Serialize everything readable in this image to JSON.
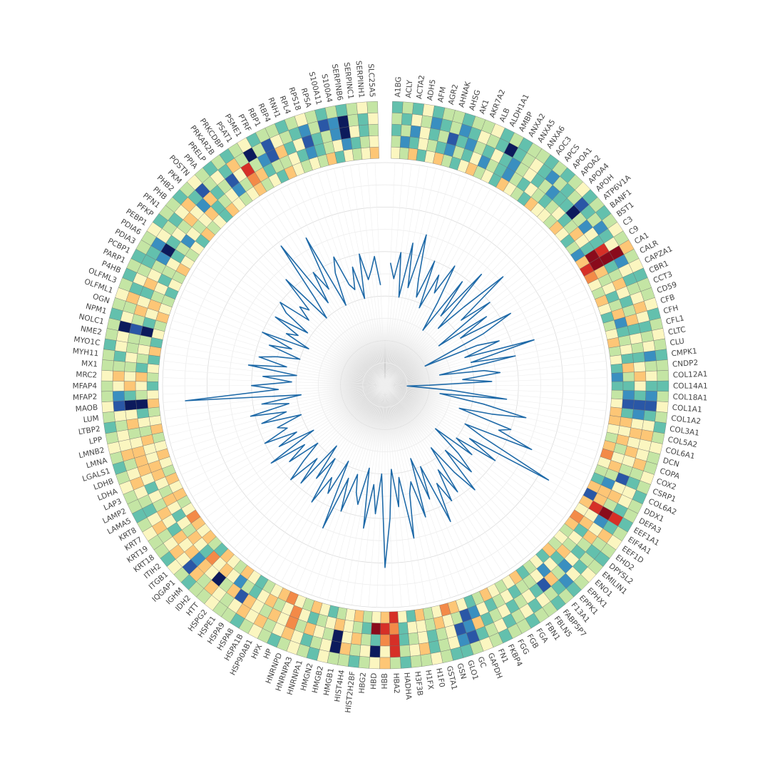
{
  "chart_data": {
    "type": "radial-heatmap",
    "categories": [
      "A1BG",
      "ACLY",
      "ACTA2",
      "ADH5",
      "AFM",
      "AGR2",
      "AHNAK",
      "AHSG",
      "AK1",
      "AKR7A2",
      "ALB",
      "ALDH1A1",
      "AMBP",
      "ANXA2",
      "ANXA5",
      "ANXA6",
      "AOC3",
      "APCS",
      "APOA1",
      "APOA2",
      "APOA4",
      "APOH",
      "ATP6V1A",
      "BANF1",
      "BST1",
      "C3",
      "C9",
      "CA1",
      "CALR",
      "CAPZA1",
      "CBR1",
      "CCT3",
      "CD59",
      "CFB",
      "CFH",
      "CFL1",
      "CLTC",
      "CLU",
      "CMPK1",
      "CNDP2",
      "COL12A1",
      "COL14A1",
      "COL18A1",
      "COL1A1",
      "COL1A2",
      "COL3A1",
      "COL5A2",
      "COL6A1",
      "DCN",
      "COPA",
      "COX2",
      "CSRP1",
      "COL6A2",
      "DDX1",
      "DEFA3",
      "EEF1A1",
      "EIF4A1",
      "EEF1D",
      "EHD2",
      "DPYSL2",
      "EMILIN1",
      "ENO1",
      "EPHX1",
      "EPPK1",
      "F13A1",
      "FABP5P7",
      "FBLN5",
      "FBN1",
      "FGA",
      "FGB",
      "FGG",
      "FKBP4",
      "FN1",
      "GAPDH",
      "GC",
      "GLO1",
      "GSN",
      "GSTA1",
      "H1F0",
      "H1FX",
      "H3F3B",
      "HADHA",
      "HBA2",
      "HBB",
      "HBD",
      "HBG2",
      "HIST2H2BF",
      "HIST4H4",
      "HMGB1",
      "HMGB2",
      "HMGN2",
      "HNRNPA1",
      "HNRNPA3",
      "HNRNPD",
      "HP",
      "HPX",
      "HSP90AB1",
      "HSPA1B",
      "HSPA8",
      "HSPA9",
      "HSPE1",
      "HSPG2",
      "HTT",
      "IDH2",
      "IGHM",
      "IQGAP1",
      "ITGB1",
      "ITIH2",
      "KRT18",
      "KRT19",
      "KRT7",
      "KRT8",
      "LAMA5",
      "LAMP2",
      "LAP3",
      "LDHA",
      "LDHB",
      "LGALS1",
      "LMNA",
      "LMNB2",
      "LPP",
      "LTBP2",
      "LUM",
      "MAOB",
      "MFAP2",
      "MFAP4",
      "MRC2",
      "MX1",
      "MYH11",
      "MYO1C",
      "NME2",
      "NOLC1",
      "NPM1",
      "OGN",
      "OLFML1",
      "OLFML3",
      "P4HB",
      "PARP1",
      "PCBP1",
      "PDIA3",
      "PDIA6",
      "PEBP1",
      "PFKP",
      "PFN1",
      "PHB",
      "PHB2",
      "PKM",
      "POSTN",
      "PPIA",
      "PRELP",
      "PRKAR2B",
      "PRKCDBP",
      "PSAT1",
      "PSME1",
      "PTRF",
      "RBP1",
      "RBP4",
      "RNH1",
      "RPL4",
      "RPS18",
      "RPSA",
      "S100A11",
      "S100A4",
      "SERPINB6",
      "SERPINC1",
      "SERPINH1",
      "SLC25A5"
    ],
    "values": [
      55,
      48,
      60,
      40,
      65,
      45,
      70,
      50,
      42,
      60,
      38,
      55,
      47,
      62,
      44,
      30,
      58,
      40,
      66,
      35,
      50,
      72,
      45,
      60,
      30,
      55,
      40,
      65,
      50,
      20,
      45,
      55,
      38,
      70,
      40,
      60,
      25,
      45,
      52,
      35,
      48,
      20,
      10,
      30,
      55,
      25,
      45,
      65,
      50,
      35,
      60,
      55,
      72,
      40,
      50,
      85,
      45,
      60,
      40,
      50,
      30,
      45,
      55,
      40,
      62,
      50,
      35,
      58,
      45,
      60,
      50,
      68,
      40,
      55,
      35,
      62,
      45,
      50,
      70,
      42,
      55,
      38,
      60,
      82,
      40,
      58,
      45,
      65,
      38,
      55,
      50,
      42,
      60,
      45,
      70,
      38,
      55,
      48,
      62,
      40,
      52,
      35,
      58,
      45,
      60,
      50,
      40,
      55,
      45,
      62,
      38,
      55,
      45,
      60,
      48,
      52,
      40,
      58,
      46,
      62,
      44,
      56,
      38,
      90,
      48,
      60,
      42,
      55,
      40,
      62,
      45,
      58,
      50,
      40,
      55,
      45,
      60,
      38,
      50,
      45,
      58,
      42,
      55,
      60,
      45,
      52,
      48,
      65,
      40,
      50,
      78,
      45,
      60,
      50,
      75,
      40,
      55,
      62,
      48,
      45,
      55,
      40,
      60,
      48,
      52,
      58,
      45
    ],
    "color": "#1f6aa8",
    "rlim": [
      0,
      100
    ],
    "grid": true,
    "clim": [
      0,
      9
    ],
    "colors": [
      "#0c1a5c",
      "#2a57a6",
      "#3a8fc0",
      "#63c0ad",
      "#c4e5a4",
      "#fbf6c0",
      "#fdc676",
      "#f38a48",
      "#d62f27",
      "#8a0b1c"
    ],
    "heatmap": [
      [
        5,
        4,
        6,
        3,
        5,
        6,
        4,
        3,
        5,
        6,
        4,
        5,
        3,
        6,
        5,
        4,
        3,
        6,
        5,
        5,
        4,
        6,
        5,
        3,
        4,
        2,
        6,
        8,
        7,
        5,
        4,
        6,
        5,
        3,
        4,
        5,
        6,
        4,
        5,
        3,
        2,
        3,
        4,
        5,
        6,
        6,
        5,
        4,
        6,
        7,
        5,
        4,
        3,
        6,
        1,
        6,
        5,
        7,
        6,
        4,
        5,
        4,
        6,
        3,
        5,
        4,
        3,
        6,
        5,
        4,
        5,
        6,
        4,
        3,
        5,
        6,
        7,
        5,
        4,
        6,
        3,
        5,
        8,
        6,
        5,
        4,
        6,
        5,
        4,
        3,
        5,
        6,
        4,
        5,
        7,
        6,
        5,
        4,
        3,
        5,
        6,
        4,
        5,
        6,
        3,
        4,
        6,
        5,
        6,
        7,
        5,
        4,
        6,
        5,
        6,
        4,
        5,
        6,
        5,
        4,
        6,
        5,
        4,
        6,
        5,
        3,
        4,
        5,
        3,
        6,
        3,
        5,
        4,
        6,
        5,
        4,
        3,
        5,
        4,
        6,
        5,
        4,
        5,
        3,
        6,
        4,
        5,
        3,
        6,
        5,
        4,
        5,
        6,
        4,
        5,
        3,
        6,
        5,
        4,
        5,
        4,
        6,
        3,
        5,
        4,
        5,
        6
      ],
      [
        4,
        2,
        3,
        5,
        4,
        3,
        2,
        4,
        3,
        5,
        2,
        4,
        3,
        2,
        4,
        3,
        5,
        4,
        3,
        4,
        5,
        3,
        4,
        6,
        5,
        3,
        9,
        9,
        6,
        4,
        5,
        3,
        4,
        6,
        2,
        3,
        4,
        5,
        3,
        6,
        4,
        3,
        2,
        1,
        3,
        6,
        5,
        6,
        4,
        5,
        6,
        4,
        2,
        6,
        6,
        8,
        5,
        6,
        3,
        5,
        4,
        6,
        3,
        5,
        2,
        5,
        4,
        4,
        3,
        5,
        4,
        3,
        5,
        2,
        1,
        4,
        5,
        6,
        4,
        5,
        5,
        3,
        7,
        8,
        9,
        3,
        4,
        5,
        6,
        5,
        4,
        3,
        5,
        7,
        5,
        4,
        6,
        5,
        3,
        4,
        2,
        5,
        6,
        5,
        7,
        3,
        5,
        6,
        4,
        5,
        3,
        5,
        6,
        4,
        5,
        6,
        6,
        5,
        5,
        6,
        4,
        5,
        3,
        0,
        4,
        5,
        6,
        3,
        4,
        5,
        4,
        0,
        3,
        5,
        6,
        4,
        5,
        3,
        4,
        5,
        3,
        4,
        2,
        5,
        4,
        5,
        6,
        3,
        4,
        5,
        2,
        4,
        7,
        6,
        3,
        4,
        4,
        5,
        3,
        2,
        3,
        4,
        5,
        2,
        3,
        4,
        5
      ],
      [
        3,
        4,
        2,
        5,
        3,
        4,
        1,
        3,
        2,
        4,
        3,
        5,
        3,
        2,
        4,
        5,
        3,
        4,
        2,
        3,
        3,
        0,
        4,
        2,
        5,
        3,
        8,
        9,
        3,
        4,
        6,
        5,
        3,
        4,
        6,
        3,
        5,
        4,
        3,
        5,
        6,
        5,
        3,
        1,
        2,
        5,
        6,
        5,
        6,
        5,
        4,
        1,
        5,
        6,
        4,
        9,
        2,
        5,
        6,
        4,
        3,
        5,
        2,
        4,
        6,
        1,
        3,
        5,
        4,
        3,
        5,
        4,
        3,
        6,
        2,
        1,
        5,
        4,
        3,
        5,
        4,
        3,
        8,
        7,
        3,
        4,
        6,
        5,
        0,
        4,
        5,
        6,
        4,
        7,
        5,
        6,
        4,
        5,
        6,
        1,
        6,
        4,
        0,
        5,
        6,
        2,
        6,
        5,
        6,
        3,
        5,
        6,
        4,
        5,
        3,
        5,
        6,
        6,
        6,
        5,
        4,
        6,
        5,
        0,
        3,
        6,
        5,
        4,
        5,
        4,
        4,
        1,
        4,
        6,
        5,
        3,
        6,
        5,
        4,
        2,
        0,
        3,
        5,
        4,
        6,
        5,
        2,
        6,
        3,
        4,
        1,
        5,
        8,
        4,
        2,
        1,
        6,
        3,
        5,
        1,
        3,
        4,
        2,
        0,
        5,
        3,
        4
      ],
      [
        4,
        3,
        5,
        4,
        2,
        3,
        4,
        2,
        3,
        5,
        4,
        3,
        0,
        3,
        4,
        5,
        3,
        2,
        4,
        3,
        4,
        1,
        3,
        4,
        2,
        3,
        5,
        9,
        2,
        5,
        3,
        4,
        5,
        6,
        5,
        3,
        4,
        5,
        2,
        4,
        5,
        3,
        2,
        1,
        3,
        5,
        6,
        5,
        5,
        6,
        4,
        3,
        5,
        5,
        3,
        8,
        3,
        6,
        4,
        3,
        4,
        3,
        5,
        2,
        3,
        4,
        5,
        3,
        5,
        4,
        3,
        5,
        4,
        3,
        1,
        2,
        5,
        4,
        3,
        6,
        5,
        4,
        8,
        5,
        0,
        5,
        4,
        6,
        0,
        5,
        4,
        3,
        5,
        6,
        5,
        4,
        6,
        5,
        6,
        5,
        4,
        5,
        6,
        4,
        6,
        1,
        5,
        6,
        5,
        4,
        6,
        5,
        3,
        4,
        5,
        6,
        5,
        4,
        6,
        5,
        5,
        4,
        5,
        1,
        2,
        5,
        6,
        4,
        3,
        5,
        5,
        0,
        5,
        4,
        6,
        3,
        5,
        4,
        3,
        3,
        2,
        5,
        4,
        3,
        5,
        6,
        3,
        1,
        4,
        5,
        3,
        6,
        4,
        0,
        4,
        1,
        5,
        4,
        3,
        2,
        4,
        1,
        2,
        0,
        4,
        3,
        5
      ],
      [
        3,
        4,
        3,
        5,
        3,
        4,
        4,
        3,
        4,
        4,
        5,
        3,
        4,
        3,
        4,
        4,
        3,
        4,
        3,
        4,
        5,
        3,
        4,
        3,
        4,
        5,
        4,
        6,
        4,
        5,
        3,
        4,
        4,
        5,
        3,
        4,
        5,
        4,
        3,
        4,
        4,
        3,
        4,
        5,
        4,
        3,
        4,
        5,
        4,
        4,
        5,
        4,
        3,
        4,
        4,
        3,
        4,
        5,
        4,
        3,
        4,
        5,
        4,
        3,
        4,
        3,
        4,
        4,
        3,
        4,
        4,
        3,
        4,
        5,
        4,
        3,
        3,
        4,
        5,
        4,
        4,
        3,
        4,
        6,
        5,
        4,
        3,
        4,
        4,
        5,
        3,
        4,
        5,
        4,
        3,
        4,
        5,
        4,
        3,
        4,
        4,
        5,
        4,
        4,
        3,
        4,
        5,
        3,
        4,
        4,
        5,
        4,
        3,
        4,
        4,
        5,
        4,
        3,
        4,
        5,
        4,
        3,
        4,
        5,
        4,
        4,
        5,
        4,
        4,
        3,
        4,
        4,
        3,
        4,
        5,
        4,
        3,
        4,
        3,
        4,
        4,
        5,
        3,
        4,
        4,
        3,
        4,
        5,
        4,
        3,
        4,
        3,
        4,
        5,
        3,
        4,
        4,
        3,
        4,
        5,
        4,
        3,
        4,
        3,
        4,
        5,
        4
      ]
    ]
  }
}
